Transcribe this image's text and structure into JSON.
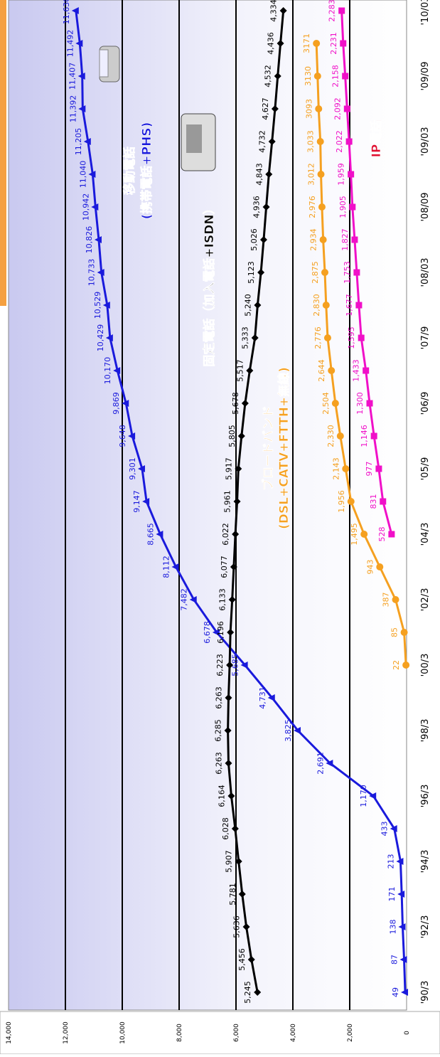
{
  "chart_data": {
    "type": "line",
    "categories": [
      "'90/3",
      null,
      "'92/3",
      null,
      "'94/3",
      null,
      "'96/3",
      null,
      "'98/3",
      null,
      "'00/3",
      null,
      "'02/3",
      null,
      "'04/3",
      null,
      "'05/9",
      null,
      "'06/9",
      null,
      "'07/9",
      null,
      "'08/03",
      null,
      "'08/09",
      null,
      "'09/03",
      null,
      "'09/09",
      null,
      "'10/03"
    ],
    "series": [
      {
        "name": "移動電話",
        "color": "#1a1adc",
        "marker": "triangle",
        "values": [
          49,
          87,
          138,
          171,
          213,
          433,
          1170,
          2691,
          3825,
          4731,
          5685,
          6678,
          7482,
          8112,
          8665,
          9147,
          9301,
          9648,
          9869,
          10170,
          10429,
          10529,
          10733,
          10826,
          10942,
          11040,
          11205,
          11392,
          11407,
          11492,
          11630
        ],
        "value_labels": [
          "49",
          "87",
          "138",
          "171",
          "213",
          "433",
          "1,170",
          "2,691",
          "3,825",
          "4,731",
          "5,685",
          "6,678",
          "7,482",
          "8,112",
          "8,665",
          "9,147",
          "9,301",
          "9,648",
          "9,869",
          "10,170",
          "10,429",
          "10,529",
          "10,733",
          "10,826",
          "10,942",
          "11,040",
          "11,205",
          "11,392",
          "11,407",
          "11,492",
          "11,630"
        ]
      },
      {
        "name": "固定電話",
        "color": "#000000",
        "marker": "diamond",
        "values": [
          5245,
          5456,
          5636,
          5781,
          5907,
          6028,
          6164,
          6263,
          6285,
          6263,
          6223,
          6196,
          6133,
          6077,
          6022,
          5961,
          5917,
          5805,
          5678,
          5517,
          5333,
          5240,
          5123,
          5026,
          4936,
          4843,
          4732,
          4627,
          4532,
          4436,
          4334
        ],
        "value_labels": [
          "5,245",
          "5,456",
          "5,636",
          "5,781",
          "5,907",
          "6,028",
          "6,164",
          "6,263",
          "6,285",
          "6,263",
          "6,223",
          "6,196",
          "6,133",
          "6,077",
          "6,022",
          "5,961",
          "5,917",
          "5,805",
          "5,678",
          "5,517",
          "5,333",
          "5,240",
          "5,123",
          "5,026",
          "4,936",
          "4,843",
          "4,732",
          "4,627",
          "4,532",
          "4,436",
          "4,334"
        ]
      },
      {
        "name": "ブロードバンド",
        "color": "#f5a020",
        "marker": "circle",
        "values": [
          null,
          null,
          null,
          null,
          null,
          null,
          null,
          null,
          null,
          null,
          22,
          85,
          387,
          943,
          1495,
          1956,
          2143,
          2330,
          2504,
          2644,
          2776,
          2830,
          2875,
          2934,
          2976,
          3012,
          3033,
          3093,
          3130,
          3171,
          null
        ],
        "value_labels": [
          null,
          null,
          null,
          null,
          null,
          null,
          null,
          null,
          null,
          null,
          "22",
          "85",
          "387",
          "943",
          "1,495",
          "1,956",
          "2,143",
          "2,330",
          "2,504",
          "2,644",
          "2,776",
          "2,830",
          "2,875",
          "2,934",
          "2,976",
          "3,012",
          "3,033",
          "3093",
          "3130",
          "3171",
          null
        ]
      },
      {
        "name": "IP電話",
        "color": "#f010c8",
        "marker": "square",
        "values": [
          null,
          null,
          null,
          null,
          null,
          null,
          null,
          null,
          null,
          null,
          null,
          null,
          null,
          null,
          528,
          831,
          977,
          1146,
          1300,
          1433,
          1595,
          1677,
          1753,
          1827,
          1905,
          1959,
          2022,
          2092,
          2158,
          2231,
          2283
        ],
        "value_labels": [
          null,
          null,
          null,
          null,
          null,
          null,
          null,
          null,
          null,
          null,
          null,
          null,
          null,
          null,
          "528",
          "831",
          "977",
          "1,146",
          "1,300",
          "1,433",
          "1,595",
          "1,677",
          "1,753",
          "1,827",
          "1,905",
          "1,959",
          "2,022",
          "2,092",
          "2,158",
          "2,231",
          "2,283"
        ]
      }
    ],
    "ylim": [
      0,
      14000
    ],
    "yticks": [
      0,
      {
        "value": 2000,
        "label": "2,000"
      },
      {
        "value": 4000,
        "label": "4,000"
      },
      {
        "value": 6000,
        "label": "6,000"
      },
      {
        "value": 8000,
        "label": "8,000"
      },
      {
        "value": 10000,
        "label": "10,000"
      },
      {
        "value": 12000,
        "label": "12,000"
      },
      {
        "value": 14000,
        "label": "14,000"
      }
    ],
    "grid": true,
    "annotations": [
      {
        "text": "移動電話",
        "color": "#1a1adc"
      },
      {
        "text": "(携帯電話+PHS)",
        "color": "#1a1adc"
      },
      {
        "text": "固定電話（加入電話+ISDN）",
        "color": "#000000"
      },
      {
        "text": "ブロードバンド",
        "color": "#f5a020"
      },
      {
        "text": "(DSL+CATV+FTTH+無線)",
        "color": "#f5a020"
      },
      {
        "text": "IP電話",
        "color": "#e01030"
      }
    ]
  }
}
